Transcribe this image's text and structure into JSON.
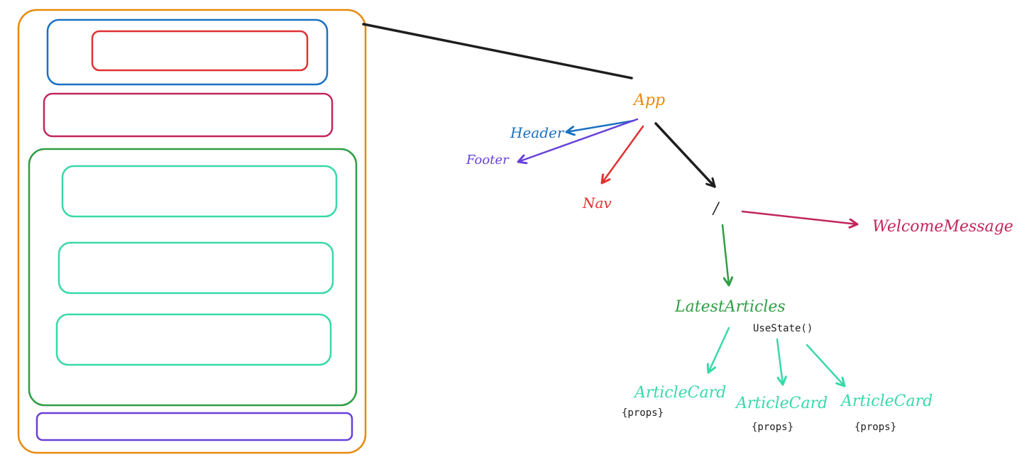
{
  "wireframe": {
    "colors": {
      "app": "#e8890c",
      "header": "#1971c2",
      "nav": "#e03131",
      "welcome": "#c2255c",
      "articles": "#2f9e44",
      "card": "#38d9a9",
      "footer": "#6741d9"
    }
  },
  "tree": {
    "app": {
      "label": "App",
      "color": "#e8890c"
    },
    "header": {
      "label": "Header",
      "color": "#1971c2"
    },
    "footer": {
      "label": "Footer",
      "color": "#6741d9"
    },
    "nav": {
      "label": "Nav",
      "color": "#e03131"
    },
    "route": {
      "label": "/",
      "color": "#1e1e1e"
    },
    "welcome": {
      "label": "WelcomeMessage",
      "color": "#c2255c"
    },
    "latest": {
      "label": "LatestArticles",
      "color": "#2f9e44",
      "note": "UseState()"
    },
    "cards": [
      {
        "label": "ArticleCard",
        "note": "{props}"
      },
      {
        "label": "ArticleCard",
        "note": "{props}"
      },
      {
        "label": "ArticleCard",
        "note": "{props}"
      }
    ],
    "card_color": "#38d9a9",
    "edge_color": "#1e1e1e"
  }
}
